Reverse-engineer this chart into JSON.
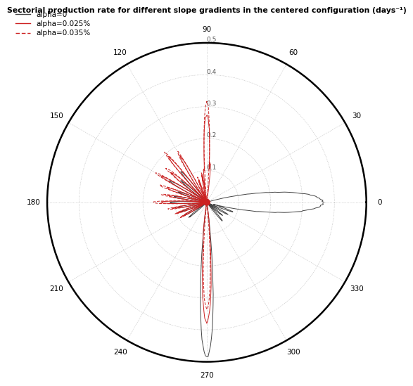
{
  "title": "Sectorial production rate for different slope gradients in the centered configuration (days⁻¹)",
  "rlim": [
    0,
    0.5
  ],
  "rticks": [
    0.1,
    0.2,
    0.3,
    0.4,
    0.5
  ],
  "rlabels": [
    "0.1",
    "0.2",
    "0.3",
    "0.4",
    "0.5"
  ],
  "background_color": "#ffffff",
  "grid_color": "#aaaaaa",
  "circle_color": "#000000",
  "color_alpha0": "#444444",
  "color_red_solid": "#cc2222",
  "color_red_dash": "#cc2222",
  "legend_labels": [
    "alpha=0",
    "alpha=0.025%",
    "alpha=0.035%"
  ]
}
